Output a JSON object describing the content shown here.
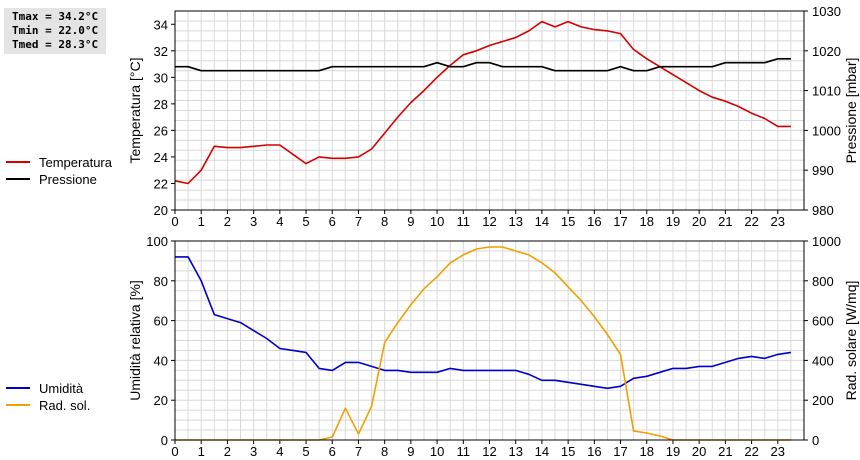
{
  "stats": {
    "tmax": "Tmax = 34.2°C",
    "tmin": "Tmin = 22.0°C",
    "tmed": "Tmed = 28.3°C"
  },
  "chart_data": [
    {
      "type": "line",
      "ylabel": "Temperatura [°C]",
      "y2label": "Pressione [mbar]",
      "ylim": [
        20,
        35
      ],
      "y2lim": [
        980,
        1030
      ],
      "xlim": [
        0,
        24
      ],
      "xticks": [
        "0",
        "1",
        "2",
        "3",
        "4",
        "5",
        "6",
        "7",
        "8",
        "9",
        "10",
        "11",
        "12",
        "13",
        "14",
        "15",
        "16",
        "17",
        "18",
        "19",
        "20",
        "21",
        "22",
        "23"
      ],
      "yticks": [
        "20",
        "22",
        "24",
        "26",
        "28",
        "30",
        "32",
        "34"
      ],
      "y2ticks": [
        "980",
        "990",
        "1000",
        "1010",
        "1020",
        "1030"
      ],
      "grid": true,
      "legend_position": "left",
      "series": [
        {
          "name": "Temperatura",
          "axis": "left",
          "color": "#d40000",
          "x": [
            0,
            0.5,
            1,
            1.5,
            2,
            2.5,
            3,
            3.5,
            4,
            4.5,
            5,
            5.5,
            6,
            6.5,
            7,
            7.5,
            8,
            8.5,
            9,
            9.5,
            10,
            10.5,
            11,
            11.5,
            12,
            12.5,
            13,
            13.5,
            14,
            14.5,
            15,
            15.5,
            16,
            16.5,
            17,
            17.5,
            18,
            18.5,
            19,
            19.5,
            20,
            20.5,
            21,
            21.5,
            22,
            22.5,
            23,
            23.5
          ],
          "y": [
            22.2,
            22.0,
            23.0,
            24.8,
            24.7,
            24.7,
            24.8,
            24.9,
            24.9,
            24.2,
            23.5,
            24.0,
            23.9,
            23.9,
            24.0,
            24.6,
            25.8,
            27.0,
            28.1,
            29.0,
            30.0,
            30.9,
            31.7,
            32.0,
            32.4,
            32.7,
            33.0,
            33.5,
            34.2,
            33.8,
            34.2,
            33.8,
            33.6,
            33.5,
            33.3,
            32.1,
            31.4,
            30.8,
            30.2,
            29.6,
            29.0,
            28.5,
            28.2,
            27.8,
            27.3,
            26.9,
            26.3,
            26.3
          ]
        },
        {
          "name": "Pressione",
          "axis": "right",
          "color": "#000000",
          "x": [
            0,
            0.5,
            1,
            1.5,
            2,
            2.5,
            3,
            3.5,
            4,
            4.5,
            5,
            5.5,
            6,
            6.5,
            7,
            7.5,
            8,
            8.5,
            9,
            9.5,
            10,
            10.5,
            11,
            11.5,
            12,
            12.5,
            13,
            13.5,
            14,
            14.5,
            15,
            15.5,
            16,
            16.5,
            17,
            17.5,
            18,
            18.5,
            19,
            19.5,
            20,
            20.5,
            21,
            21.5,
            22,
            22.5,
            23,
            23.5
          ],
          "y": [
            1016,
            1016,
            1015,
            1015,
            1015,
            1015,
            1015,
            1015,
            1015,
            1015,
            1015,
            1015,
            1016,
            1016,
            1016,
            1016,
            1016,
            1016,
            1016,
            1016,
            1017,
            1016,
            1016,
            1017,
            1017,
            1016,
            1016,
            1016,
            1016,
            1015,
            1015,
            1015,
            1015,
            1015,
            1016,
            1015,
            1015,
            1016,
            1016,
            1016,
            1016,
            1016,
            1017,
            1017,
            1017,
            1017,
            1018,
            1018
          ]
        }
      ]
    },
    {
      "type": "line",
      "ylabel": "Umidità relativa [%]",
      "y2label": "Rad. solare [W/mq]",
      "ylim": [
        0,
        100
      ],
      "y2lim": [
        0,
        1000
      ],
      "xlim": [
        0,
        24
      ],
      "xticks": [
        "0",
        "1",
        "2",
        "3",
        "4",
        "5",
        "6",
        "7",
        "8",
        "9",
        "10",
        "11",
        "12",
        "13",
        "14",
        "15",
        "16",
        "17",
        "18",
        "19",
        "20",
        "21",
        "22",
        "23"
      ],
      "yticks": [
        "0",
        "20",
        "40",
        "60",
        "80",
        "100"
      ],
      "y2ticks": [
        "0",
        "200",
        "400",
        "600",
        "800",
        "1000"
      ],
      "grid": true,
      "legend_position": "left",
      "series": [
        {
          "name": "Umidità",
          "axis": "left",
          "color": "#0000cc",
          "x": [
            0,
            0.5,
            1,
            1.5,
            2,
            2.5,
            3,
            3.5,
            4,
            4.5,
            5,
            5.5,
            6,
            6.5,
            7,
            7.5,
            8,
            8.5,
            9,
            9.5,
            10,
            10.5,
            11,
            11.5,
            12,
            12.5,
            13,
            13.5,
            14,
            14.5,
            15,
            15.5,
            16,
            16.5,
            17,
            17.5,
            18,
            18.5,
            19,
            19.5,
            20,
            20.5,
            21,
            21.5,
            22,
            22.5,
            23,
            23.5
          ],
          "y": [
            92,
            92,
            80,
            63,
            61,
            59,
            55,
            51,
            46,
            45,
            44,
            36,
            35,
            39,
            39,
            37,
            35,
            35,
            34,
            34,
            34,
            36,
            35,
            35,
            35,
            35,
            35,
            33,
            30,
            30,
            29,
            28,
            27,
            26,
            27,
            31,
            32,
            34,
            36,
            36,
            37,
            37,
            39,
            41,
            42,
            41,
            43,
            44
          ]
        },
        {
          "name": "Rad. sol.",
          "axis": "right",
          "color": "#f0a000",
          "x": [
            0,
            0.5,
            1,
            1.5,
            2,
            2.5,
            3,
            3.5,
            4,
            4.5,
            5,
            5.5,
            6,
            6.5,
            7,
            7.5,
            8,
            8.5,
            9,
            9.5,
            10,
            10.5,
            11,
            11.5,
            12,
            12.5,
            13,
            13.5,
            14,
            14.5,
            15,
            15.5,
            16,
            16.5,
            17,
            17.5,
            18,
            18.5,
            19,
            19.5,
            20,
            20.5,
            21,
            21.5,
            22,
            22.5,
            23,
            23.5
          ],
          "y": [
            0,
            0,
            0,
            0,
            0,
            0,
            0,
            0,
            0,
            0,
            0,
            0,
            15,
            160,
            30,
            170,
            490,
            590,
            680,
            760,
            820,
            890,
            930,
            960,
            970,
            970,
            950,
            930,
            890,
            840,
            770,
            700,
            620,
            530,
            430,
            45,
            35,
            20,
            0,
            0,
            0,
            0,
            0,
            0,
            0,
            0,
            0,
            0
          ]
        }
      ]
    }
  ]
}
